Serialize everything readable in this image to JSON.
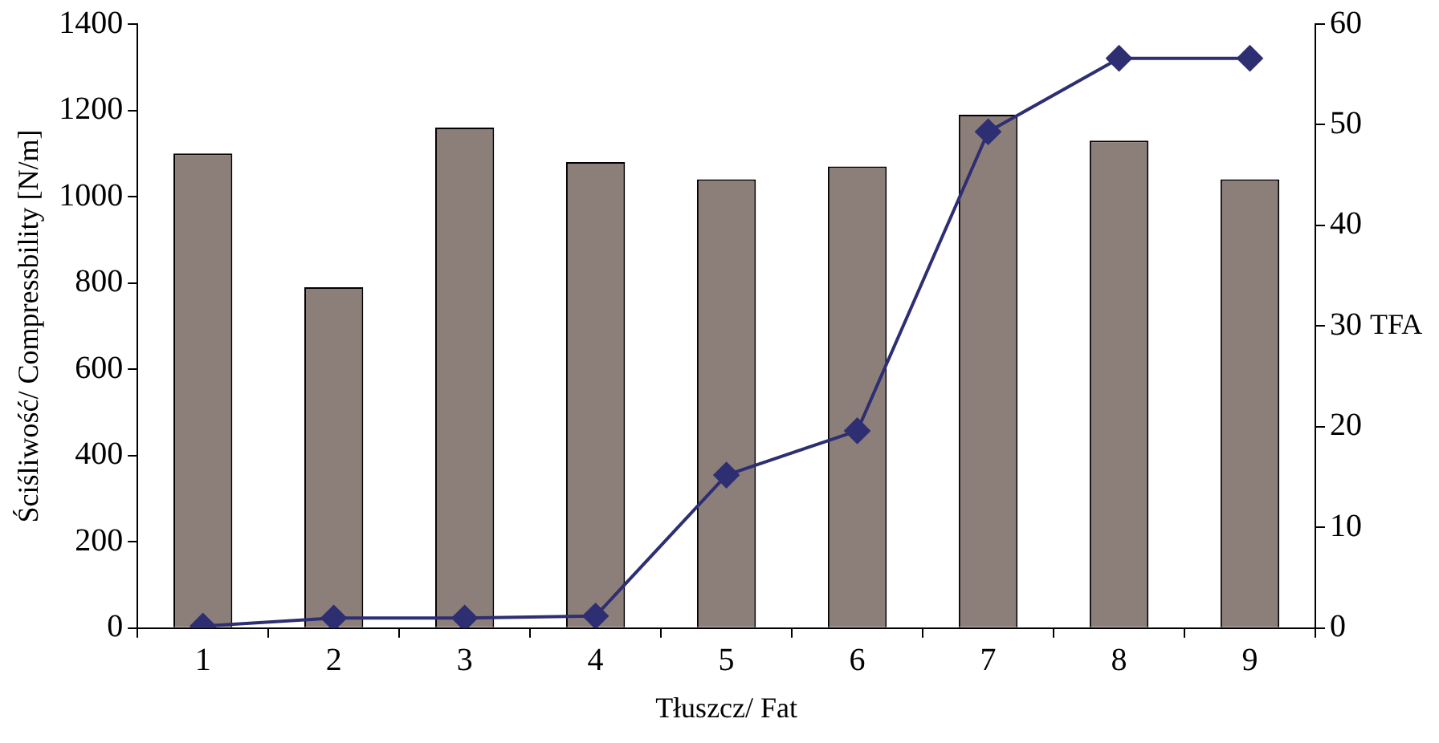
{
  "chart_data": {
    "type": "bar",
    "xlabel": "Tłuszcz/ Fat",
    "ylabel": "Ściśliwość/ Compressbility [N/m]",
    "y2label": "TFA",
    "categories": [
      "1",
      "2",
      "3",
      "4",
      "5",
      "6",
      "7",
      "8",
      "9"
    ],
    "series": [
      {
        "color": "#8c7f7a",
        "values": [
          1100,
          790,
          1160,
          1080,
          1040,
          1070,
          1190,
          1130,
          1040
        ]
      },
      {
        "type": "line",
        "axis": "y2",
        "color": "#2e2e72",
        "marker": "diamond",
        "values": [
          0.2,
          1.0,
          1.0,
          1.2,
          15.2,
          19.6,
          49.3,
          56.6,
          56.6
        ]
      }
    ],
    "ylim": [
      0,
      1400
    ],
    "yticks": [
      0,
      200,
      400,
      600,
      800,
      1000,
      1200,
      1400
    ],
    "y2lim": [
      0,
      60
    ],
    "y2ticks": [
      0,
      10,
      20,
      30,
      40,
      50,
      60
    ],
    "grid": false,
    "legend": false
  }
}
